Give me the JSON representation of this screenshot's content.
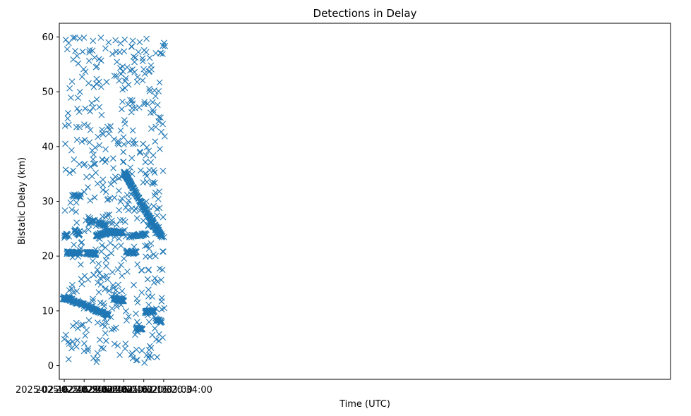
{
  "chart_data": {
    "type": "scatter",
    "title": "Detections in Delay",
    "xlabel": "Time (UTC)",
    "ylabel": "Bistatic Delay (km)",
    "marker": "x",
    "color": "#1f77b4",
    "grid": false,
    "x_range_seconds": [
      -15,
      1830
    ],
    "ylim": [
      -2.5,
      62.5
    ],
    "x_ticks": [
      {
        "t": 0,
        "label": "2025-02-16 20:29:00"
      },
      {
        "t": 60,
        "label": "2025-02-16 20:30:00"
      },
      {
        "t": 120,
        "label": "2025-02-16 20:31:00"
      },
      {
        "t": 180,
        "label": "2025-02-16 20:32:00"
      },
      {
        "t": 240,
        "label": "2025-02-16 20:33:00"
      },
      {
        "t": 300,
        "label": "2025-02-16 20:34:00"
      }
    ],
    "y_ticks": [
      0,
      10,
      20,
      30,
      40,
      50,
      60
    ],
    "tracks": [
      {
        "t": [
          -4,
          24
        ],
        "y": [
          12.4,
          12.0
        ],
        "n": 55
      },
      {
        "t": [
          24,
          84
        ],
        "y": [
          11.8,
          10.6
        ],
        "n": 60
      },
      {
        "t": [
          84,
          134
        ],
        "y": [
          10.4,
          9.2
        ],
        "n": 55
      },
      {
        "t": [
          148,
          180
        ],
        "y": [
          12.2,
          11.9
        ],
        "n": 45
      },
      {
        "t": [
          180,
          202
        ],
        "y": [
          35.4,
          33.0
        ],
        "n": 55
      },
      {
        "t": [
          202,
          250
        ],
        "y": [
          33.0,
          27.8
        ],
        "n": 70
      },
      {
        "t": [
          250,
          296
        ],
        "y": [
          27.8,
          23.5
        ],
        "n": 60
      },
      {
        "t": [
          258,
          292
        ],
        "y": [
          26.2,
          23.8
        ],
        "n": 35
      },
      {
        "t": [
          8,
          30
        ],
        "y": [
          20.6,
          20.6
        ],
        "n": 35
      },
      {
        "t": [
          30,
          50
        ],
        "y": [
          20.5,
          20.6
        ],
        "n": 20
      },
      {
        "t": [
          66,
          96
        ],
        "y": [
          20.6,
          20.4
        ],
        "n": 45
      },
      {
        "t": [
          96,
          128
        ],
        "y": [
          23.8,
          24.2
        ],
        "n": 40
      },
      {
        "t": [
          128,
          178
        ],
        "y": [
          24.5,
          24.3
        ],
        "n": 50
      },
      {
        "t": [
          186,
          218
        ],
        "y": [
          20.8,
          20.6
        ],
        "n": 30
      },
      {
        "t": [
          196,
          248
        ],
        "y": [
          23.6,
          24.0
        ],
        "n": 40
      },
      {
        "t": [
          244,
          272
        ],
        "y": [
          9.8,
          10.0
        ],
        "n": 45
      },
      {
        "t": [
          216,
          236
        ],
        "y": [
          6.8,
          6.8
        ],
        "n": 20
      },
      {
        "t": [
          276,
          294
        ],
        "y": [
          8.4,
          8.0
        ],
        "n": 20
      },
      {
        "t": [
          104,
          126
        ],
        "y": [
          26.0,
          25.6
        ],
        "n": 25
      },
      {
        "t": [
          30,
          46
        ],
        "y": [
          24.8,
          23.8
        ],
        "n": 20
      },
      {
        "t": [
          0,
          10
        ],
        "y": [
          23.5,
          24.0
        ],
        "n": 12
      },
      {
        "t": [
          24,
          48
        ],
        "y": [
          31.0,
          31.0
        ],
        "n": 14
      },
      {
        "t": [
          74,
          92
        ],
        "y": [
          26.0,
          26.5
        ],
        "n": 12
      }
    ],
    "scatter_density": 520,
    "seed": 20250216
  }
}
